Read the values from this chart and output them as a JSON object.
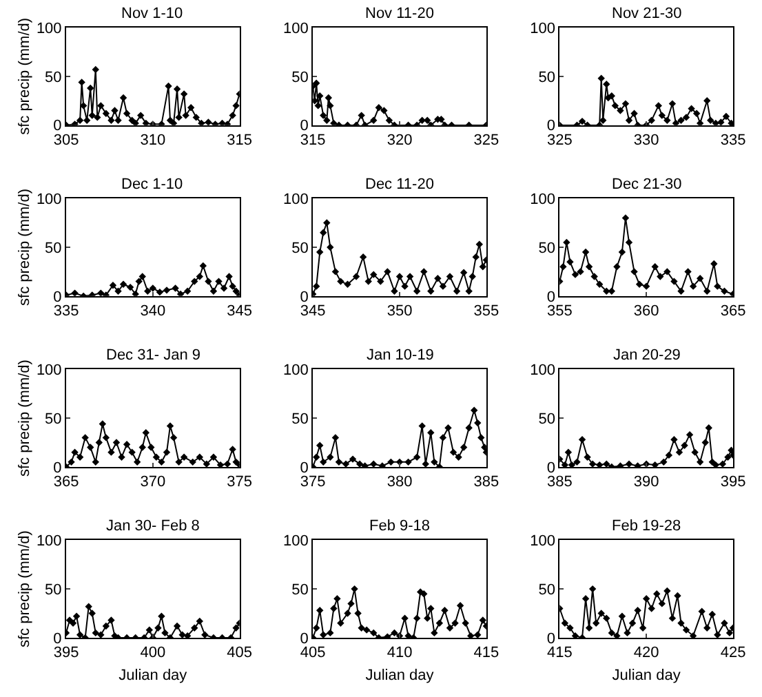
{
  "chart_data": [
    {
      "type": "line",
      "title": "Nov 1-10",
      "ylabel": "sfc precip (mm/d)",
      "color": "#000000",
      "marker": "diamond",
      "grid": false,
      "legend": false,
      "xlim": [
        305,
        315
      ],
      "xticks": [
        305,
        310,
        315
      ],
      "ylim": [
        0,
        100
      ],
      "yticks": [
        0,
        50,
        100
      ],
      "x": [
        305,
        305.5,
        305.8,
        305.9,
        306.0,
        306.2,
        306.4,
        306.5,
        306.7,
        306.8,
        307.0,
        307.3,
        307.6,
        307.8,
        308.0,
        308.3,
        308.5,
        308.8,
        309.0,
        309.3,
        309.6,
        310.0,
        310.5,
        310.9,
        311.0,
        311.2,
        311.4,
        311.5,
        311.8,
        311.9,
        312.2,
        312.5,
        312.8,
        313.2,
        313.6,
        314.0,
        314.3,
        314.6,
        314.8,
        315.0
      ],
      "values": [
        0,
        1,
        5,
        44,
        20,
        5,
        38,
        10,
        57,
        8,
        20,
        12,
        5,
        15,
        5,
        28,
        12,
        5,
        2,
        10,
        2,
        1,
        1,
        40,
        5,
        2,
        37,
        8,
        32,
        10,
        18,
        8,
        2,
        3,
        1,
        2,
        1,
        10,
        20,
        32
      ]
    },
    {
      "type": "line",
      "title": "Nov 11-20",
      "color": "#000000",
      "marker": "diamond",
      "grid": false,
      "legend": false,
      "xlim": [
        315,
        325
      ],
      "xticks": [
        315,
        320,
        325
      ],
      "ylim": [
        0,
        100
      ],
      "yticks": [
        0,
        50,
        100
      ],
      "x": [
        315.0,
        315.1,
        315.2,
        315.3,
        315.4,
        315.6,
        315.8,
        315.9,
        316.0,
        316.2,
        316.5,
        317.0,
        317.5,
        317.8,
        318.0,
        318.5,
        318.8,
        319.1,
        319.4,
        319.7,
        320.5,
        321.0,
        321.3,
        321.6,
        321.8,
        322.2,
        322.4,
        322.6,
        323,
        324,
        325
      ],
      "values": [
        40,
        25,
        43,
        20,
        30,
        10,
        5,
        28,
        20,
        2,
        0,
        0,
        0,
        10,
        0,
        5,
        18,
        15,
        5,
        0,
        0,
        0,
        5,
        5,
        0,
        6,
        6,
        0,
        0,
        0,
        0
      ]
    },
    {
      "type": "line",
      "title": "Nov 21-30",
      "color": "#000000",
      "marker": "diamond",
      "grid": false,
      "legend": false,
      "xlim": [
        325,
        335
      ],
      "xticks": [
        325,
        330,
        335
      ],
      "ylim": [
        0,
        100
      ],
      "yticks": [
        0,
        50,
        100
      ],
      "x": [
        325,
        326,
        326.3,
        326.6,
        327.3,
        327.4,
        327.5,
        327.7,
        327.8,
        328.0,
        328.2,
        328.5,
        328.8,
        329.0,
        329.3,
        329.5,
        330.0,
        330.3,
        330.7,
        330.9,
        331.2,
        331.5,
        331.7,
        332.0,
        332.3,
        332.6,
        332.9,
        333.1,
        333.5,
        333.7,
        334.0,
        334.3,
        334.6,
        334.9,
        335
      ],
      "values": [
        0,
        0,
        4,
        0,
        0,
        48,
        5,
        42,
        28,
        30,
        20,
        15,
        22,
        5,
        12,
        0,
        0,
        5,
        20,
        10,
        5,
        22,
        2,
        5,
        8,
        17,
        12,
        2,
        25,
        5,
        2,
        3,
        9,
        2,
        0
      ]
    },
    {
      "type": "line",
      "title": "Dec 1-10",
      "ylabel": "sfc precip (mm/d)",
      "color": "#000000",
      "marker": "diamond",
      "grid": false,
      "legend": false,
      "xlim": [
        335,
        345
      ],
      "xticks": [
        335,
        340,
        345
      ],
      "ylim": [
        0,
        100
      ],
      "yticks": [
        0,
        50,
        100
      ],
      "x": [
        335,
        335.5,
        336,
        336.5,
        337,
        337.3,
        337.7,
        338.0,
        338.3,
        338.7,
        339.0,
        339.2,
        339.4,
        339.7,
        340,
        340.4,
        340.8,
        341.3,
        341.6,
        342.0,
        342.4,
        342.7,
        342.9,
        343.2,
        343.5,
        343.8,
        344.1,
        344.4,
        344.6,
        344.8,
        345
      ],
      "values": [
        1,
        3,
        0,
        1,
        3,
        1,
        11,
        5,
        12,
        9,
        2,
        15,
        20,
        5,
        8,
        4,
        6,
        8,
        2,
        5,
        15,
        20,
        31,
        15,
        5,
        15,
        8,
        20,
        10,
        5,
        1
      ]
    },
    {
      "type": "line",
      "title": "Dec 11-20",
      "color": "#000000",
      "marker": "diamond",
      "grid": false,
      "legend": false,
      "xlim": [
        345,
        355
      ],
      "xticks": [
        345,
        350,
        355
      ],
      "ylim": [
        0,
        100
      ],
      "yticks": [
        0,
        50,
        100
      ],
      "x": [
        345,
        345.2,
        345.4,
        345.6,
        345.8,
        346.0,
        346.3,
        346.6,
        347.0,
        347.5,
        347.9,
        348.2,
        348.5,
        348.9,
        349.3,
        349.7,
        350.0,
        350.3,
        350.6,
        351.0,
        351.4,
        351.8,
        352.2,
        352.5,
        352.9,
        353.3,
        353.7,
        354.0,
        354.2,
        354.4,
        354.6,
        354.8,
        355.0
      ],
      "values": [
        2,
        10,
        45,
        65,
        75,
        50,
        25,
        15,
        12,
        20,
        40,
        15,
        22,
        15,
        25,
        5,
        20,
        10,
        20,
        5,
        25,
        5,
        18,
        10,
        20,
        5,
        24,
        5,
        20,
        40,
        53,
        30,
        37
      ]
    },
    {
      "type": "line",
      "title": "Dec 21-30",
      "color": "#000000",
      "marker": "diamond",
      "grid": false,
      "legend": false,
      "xlim": [
        355,
        365
      ],
      "xticks": [
        355,
        360,
        365
      ],
      "ylim": [
        0,
        100
      ],
      "yticks": [
        0,
        50,
        100
      ],
      "x": [
        355,
        355.2,
        355.4,
        355.6,
        355.9,
        356.2,
        356.5,
        356.7,
        357.0,
        357.3,
        357.7,
        358.0,
        358.3,
        358.6,
        358.8,
        359.0,
        359.3,
        359.6,
        360.0,
        360.5,
        360.8,
        361.2,
        361.6,
        362.0,
        362.4,
        362.7,
        363.1,
        363.5,
        363.9,
        364.1,
        364.5,
        365
      ],
      "values": [
        15,
        30,
        55,
        35,
        22,
        25,
        45,
        30,
        20,
        12,
        5,
        5,
        30,
        45,
        80,
        55,
        25,
        12,
        10,
        30,
        20,
        25,
        15,
        5,
        25,
        10,
        18,
        5,
        33,
        10,
        5,
        2
      ]
    },
    {
      "type": "line",
      "title": "Dec 31- Jan 9",
      "ylabel": "sfc precip (mm/d)",
      "color": "#000000",
      "marker": "diamond",
      "grid": false,
      "legend": false,
      "xlim": [
        365,
        375
      ],
      "xticks": [
        365,
        370,
        375
      ],
      "ylim": [
        0,
        100
      ],
      "yticks": [
        0,
        50,
        100
      ],
      "x": [
        365,
        365.3,
        365.5,
        365.8,
        366.1,
        366.4,
        366.7,
        366.9,
        367.1,
        367.3,
        367.6,
        367.9,
        368.2,
        368.5,
        368.8,
        369.1,
        369.4,
        369.6,
        369.9,
        370.2,
        370.5,
        370.8,
        371.0,
        371.2,
        371.5,
        371.8,
        372.3,
        372.7,
        373.1,
        373.5,
        373.9,
        374.3,
        374.6,
        374.8,
        375
      ],
      "values": [
        0,
        5,
        15,
        10,
        30,
        20,
        5,
        25,
        44,
        30,
        15,
        25,
        10,
        23,
        15,
        5,
        20,
        35,
        20,
        10,
        5,
        15,
        42,
        30,
        5,
        10,
        5,
        10,
        3,
        10,
        2,
        3,
        18,
        5,
        2
      ]
    },
    {
      "type": "line",
      "title": "Jan 10-19",
      "color": "#000000",
      "marker": "diamond",
      "grid": false,
      "legend": false,
      "xlim": [
        375,
        385
      ],
      "xticks": [
        375,
        380,
        385
      ],
      "ylim": [
        0,
        100
      ],
      "yticks": [
        0,
        50,
        100
      ],
      "x": [
        375,
        375.2,
        375.4,
        375.6,
        376.0,
        376.3,
        376.5,
        376.9,
        377.3,
        377.7,
        378,
        378.5,
        379,
        379.5,
        380,
        380.5,
        381,
        381.3,
        381.5,
        381.8,
        382.0,
        382.3,
        382.5,
        382.8,
        383.1,
        383.4,
        383.7,
        384.0,
        384.3,
        384.5,
        384.7,
        384.9,
        385
      ],
      "values": [
        0,
        10,
        22,
        5,
        10,
        30,
        5,
        3,
        8,
        3,
        1,
        3,
        1,
        5,
        5,
        5,
        10,
        42,
        3,
        35,
        5,
        0,
        30,
        40,
        15,
        10,
        20,
        40,
        58,
        45,
        30,
        20,
        15
      ]
    },
    {
      "type": "line",
      "title": "Jan 20-29",
      "color": "#000000",
      "marker": "diamond",
      "grid": false,
      "legend": false,
      "xlim": [
        385,
        395
      ],
      "xticks": [
        385,
        390,
        395
      ],
      "ylim": [
        0,
        100
      ],
      "yticks": [
        0,
        50,
        100
      ],
      "x": [
        385,
        385.3,
        385.5,
        385.7,
        386.0,
        386.3,
        386.6,
        386.9,
        387.3,
        387.7,
        388,
        388.5,
        389.0,
        389.5,
        390,
        390.5,
        391,
        391.3,
        391.6,
        391.9,
        392.2,
        392.5,
        392.8,
        393.1,
        393.4,
        393.6,
        393.8,
        394.0,
        394.4,
        394.7,
        394.9,
        395
      ],
      "values": [
        8,
        2,
        15,
        2,
        5,
        28,
        10,
        3,
        2,
        3,
        0,
        1,
        3,
        1,
        3,
        2,
        5,
        12,
        28,
        15,
        22,
        33,
        15,
        5,
        25,
        40,
        5,
        2,
        3,
        10,
        17,
        12
      ]
    },
    {
      "type": "line",
      "title": "Jan 30- Feb 8",
      "ylabel": "sfc precip (mm/d)",
      "xlabel": "Julian day",
      "color": "#000000",
      "marker": "diamond",
      "grid": false,
      "legend": false,
      "xlim": [
        395,
        405
      ],
      "xticks": [
        395,
        400,
        405
      ],
      "ylim": [
        0,
        100
      ],
      "yticks": [
        0,
        50,
        100
      ],
      "x": [
        395,
        395.2,
        395.4,
        395.6,
        395.8,
        396.1,
        396.3,
        396.5,
        396.7,
        397.0,
        397.3,
        397.6,
        397.8,
        398,
        398.5,
        399,
        399.5,
        399.8,
        400,
        400.3,
        400.5,
        400.7,
        401,
        401.4,
        401.7,
        402,
        402.4,
        402.7,
        403,
        403.5,
        404,
        404.5,
        404.8,
        405
      ],
      "values": [
        5,
        18,
        15,
        22,
        3,
        0,
        32,
        25,
        5,
        3,
        12,
        18,
        2,
        0,
        0,
        0,
        0,
        8,
        0,
        10,
        22,
        5,
        0,
        12,
        3,
        2,
        10,
        17,
        3,
        0,
        0,
        0,
        10,
        15
      ]
    },
    {
      "type": "line",
      "title": "Feb 9-18",
      "xlabel": "Julian day",
      "color": "#000000",
      "marker": "diamond",
      "grid": false,
      "legend": false,
      "xlim": [
        405,
        415
      ],
      "xticks": [
        405,
        410,
        415
      ],
      "ylim": [
        0,
        100
      ],
      "yticks": [
        0,
        50,
        100
      ],
      "x": [
        405,
        405.2,
        405.4,
        405.6,
        406,
        406.2,
        406.4,
        406.6,
        407.0,
        407.2,
        407.4,
        407.6,
        407.8,
        408.1,
        408.5,
        408.8,
        409.3,
        409.7,
        410,
        410.3,
        410.5,
        410.8,
        411,
        411.2,
        411.4,
        411.6,
        411.8,
        412,
        412.3,
        412.6,
        412.9,
        413.2,
        413.5,
        413.8,
        414.1,
        414.5,
        414.8,
        415
      ],
      "values": [
        0,
        10,
        28,
        3,
        5,
        30,
        40,
        15,
        25,
        35,
        50,
        25,
        10,
        8,
        5,
        0,
        1,
        5,
        2,
        20,
        2,
        0,
        20,
        47,
        45,
        20,
        30,
        5,
        15,
        28,
        10,
        15,
        33,
        15,
        2,
        3,
        18,
        12
      ]
    },
    {
      "type": "line",
      "title": "Feb 19-28",
      "xlabel": "Julian day",
      "color": "#000000",
      "marker": "diamond",
      "grid": false,
      "legend": false,
      "xlim": [
        415,
        425
      ],
      "xticks": [
        415,
        420,
        425
      ],
      "ylim": [
        0,
        100
      ],
      "yticks": [
        0,
        50,
        100
      ],
      "x": [
        415,
        415.3,
        415.6,
        415.9,
        416.3,
        416.5,
        416.7,
        416.9,
        417.1,
        417.4,
        417.7,
        418.0,
        418.3,
        418.6,
        418.9,
        419.2,
        419.5,
        419.8,
        420.0,
        420.3,
        420.6,
        420.9,
        421.2,
        421.5,
        421.8,
        422.0,
        422.3,
        422.7,
        423.2,
        423.5,
        423.8,
        424.1,
        424.5,
        424.8,
        425
      ],
      "values": [
        30,
        15,
        10,
        2,
        0,
        40,
        10,
        50,
        15,
        25,
        20,
        5,
        2,
        22,
        5,
        15,
        28,
        10,
        40,
        30,
        45,
        35,
        48,
        20,
        43,
        15,
        8,
        2,
        27,
        10,
        24,
        3,
        15,
        5,
        10
      ]
    }
  ]
}
